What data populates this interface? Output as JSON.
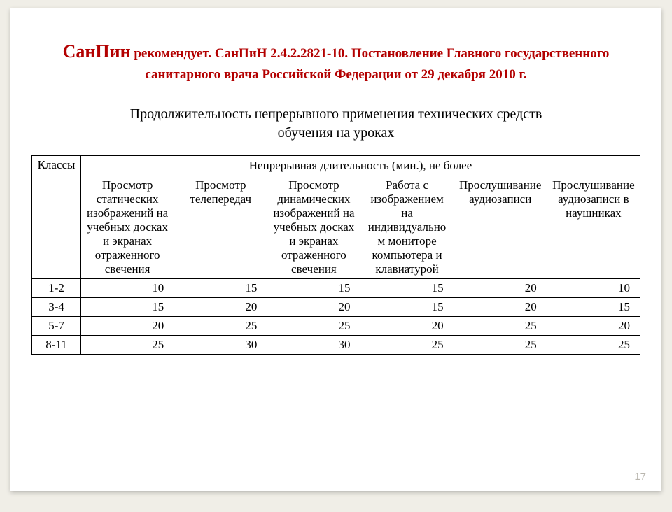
{
  "title": {
    "big": "СанПин",
    "rest1": " рекомендует. СанПиН 2.4.2.2821-10. Постановление Главного государственного",
    "line2": "санитарного врача Российской Федерации от 29 декабря 2010 г."
  },
  "caption": {
    "line1": "Продолжительность непрерывного применения технических средств",
    "line2": "обучения на уроках"
  },
  "table": {
    "corner": "Классы",
    "span_header": "Непрерывная длительность (мин.), не более",
    "columns": [
      "Просмотр статических изображений на учебных досках и экранах отраженного свечения",
      "Просмотр телепередач",
      "Просмотр динамических изображений на учебных досках и экранах отраженного свечения",
      "Работа с изображением на индивидуальном мониторе компьютера и клавиатурой",
      "Прослушивание аудиозаписи",
      "Прослушивание аудиозаписи в наушниках"
    ],
    "rows": [
      {
        "label": "1-2",
        "values": [
          "10",
          "15",
          "15",
          "15",
          "20",
          "10"
        ]
      },
      {
        "label": "3-4",
        "values": [
          "15",
          "20",
          "20",
          "15",
          "20",
          "15"
        ]
      },
      {
        "label": "5-7",
        "values": [
          "20",
          "25",
          "25",
          "20",
          "25",
          "20"
        ]
      },
      {
        "label": "8-11",
        "values": [
          "25",
          "30",
          "30",
          "25",
          "25",
          "25"
        ]
      }
    ]
  },
  "page_number": "17",
  "style": {
    "title_color": "#b30000",
    "background": "#ffffff",
    "border_color": "#000000",
    "font_family": "Times New Roman",
    "title_big_fontsize": 26,
    "title_fontsize": 19,
    "caption_fontsize": 20,
    "table_fontsize": 17
  }
}
